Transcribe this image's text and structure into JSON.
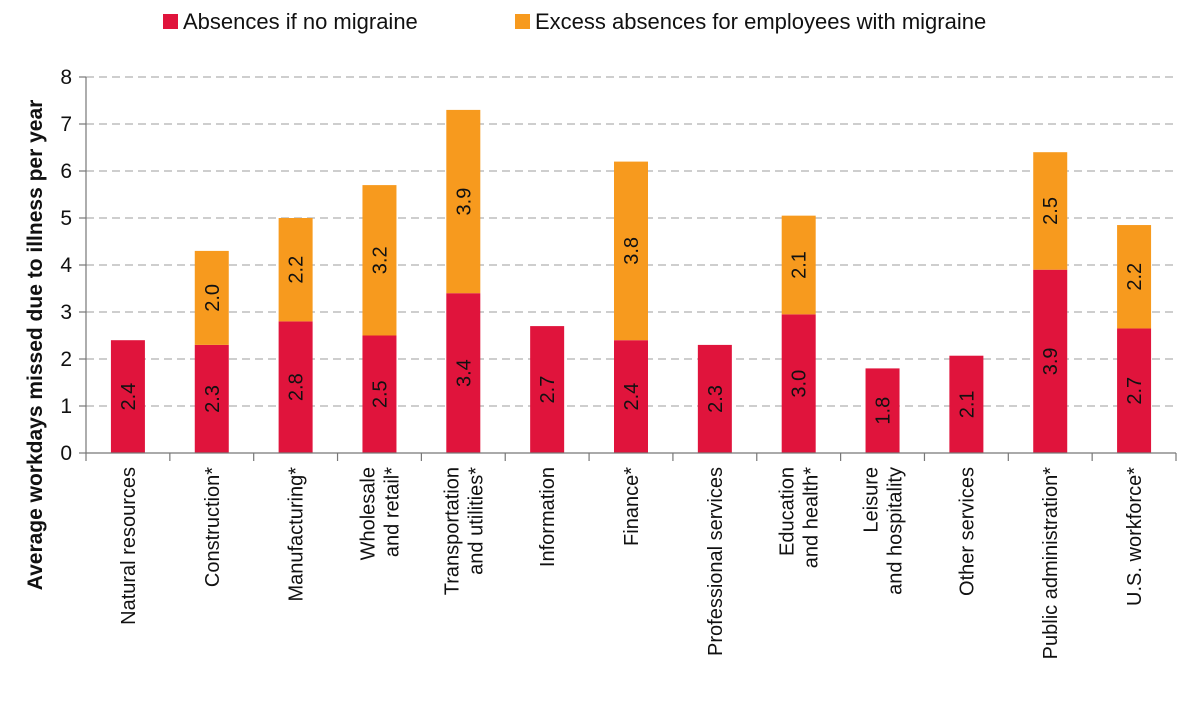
{
  "chart_data": {
    "type": "bar",
    "stacked": true,
    "orientation": "vertical",
    "title": "",
    "xlabel": "",
    "ylabel": "Average workdays missed due to illness per year",
    "ylim": [
      0,
      8
    ],
    "yticks": [
      "0",
      "1",
      "2",
      "3",
      "4",
      "5",
      "6",
      "7",
      "8"
    ],
    "grid": true,
    "legend_position": "top",
    "categories": [
      [
        "Natural resources"
      ],
      [
        "Construction*"
      ],
      [
        "Manufacturing*"
      ],
      [
        "Wholesale",
        "and retail*"
      ],
      [
        "Transportation",
        "and utilities*"
      ],
      [
        "Information"
      ],
      [
        "Finance*"
      ],
      [
        "Professional services"
      ],
      [
        "Education",
        "and health*"
      ],
      [
        "Leisure",
        "and hospitality"
      ],
      [
        "Other services"
      ],
      [
        "Public administration*"
      ],
      [
        "U.S. workforce*"
      ]
    ],
    "series": [
      {
        "name": "Absences if no migraine",
        "color": "#e0143c",
        "values": [
          2.4,
          2.3,
          2.8,
          2.5,
          3.4,
          2.7,
          2.4,
          2.3,
          2.95,
          1.8,
          2.07,
          3.9,
          2.65
        ],
        "labels": [
          "2.4",
          "2.3",
          "2.8",
          "2.5",
          "3.4",
          "2.7",
          "2.4",
          "2.3",
          "3.0",
          "1.8",
          "2.1",
          "3.9",
          "2.7"
        ]
      },
      {
        "name": "Excess absences for employees with migraine",
        "color": "#f79a1e",
        "values": [
          0,
          2.0,
          2.2,
          3.2,
          3.9,
          0,
          3.8,
          0,
          2.1,
          0,
          0,
          2.5,
          2.2
        ],
        "labels": [
          "",
          "2.0",
          "2.2",
          "3.2",
          "3.9",
          "",
          "3.8",
          "",
          "2.1",
          "",
          "",
          "2.5",
          "2.2"
        ]
      }
    ]
  }
}
